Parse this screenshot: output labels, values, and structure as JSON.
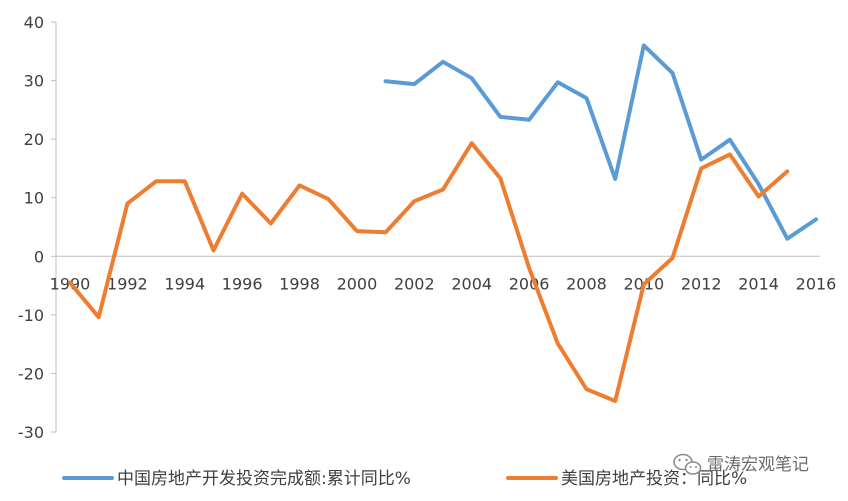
{
  "chart_data": {
    "type": "line",
    "x": [
      1990,
      1991,
      1992,
      1993,
      1994,
      1995,
      1996,
      1997,
      1998,
      1999,
      2000,
      2001,
      2002,
      2003,
      2004,
      2005,
      2006,
      2007,
      2008,
      2009,
      2010,
      2011,
      2012,
      2013,
      2014,
      2015,
      2016
    ],
    "x_tick_labels": [
      "1990",
      "1992",
      "1994",
      "1996",
      "1998",
      "2000",
      "2002",
      "2004",
      "2006",
      "2008",
      "2010",
      "2012",
      "2014",
      "2016"
    ],
    "y_tick_labels": [
      "40",
      "30",
      "20",
      "10",
      "0",
      "-10",
      "-20",
      "-30"
    ],
    "ylim": [
      -30,
      40
    ],
    "xlim": [
      1990,
      2016
    ],
    "legend_position": "bottom",
    "grid": false,
    "series": [
      {
        "name": "中国房地产开发投资完成额:累计同比%",
        "color": "#5b9bd5",
        "x": [
          2001,
          2002,
          2003,
          2004,
          2005,
          2006,
          2007,
          2008,
          2009,
          2010,
          2011,
          2012,
          2013,
          2014,
          2015,
          2016
        ],
        "values": [
          29.9,
          29.4,
          33.2,
          30.4,
          23.8,
          23.3,
          29.7,
          27.0,
          13.2,
          36.0,
          31.3,
          16.5,
          19.9,
          12.3,
          3.0,
          6.3
        ]
      },
      {
        "name": "美国房地产投资：同比%",
        "color": "#ed7d31",
        "x": [
          1990,
          1991,
          1992,
          1993,
          1994,
          1995,
          1996,
          1997,
          1998,
          1999,
          2000,
          2001,
          2002,
          2003,
          2004,
          2005,
          2006,
          2007,
          2008,
          2009,
          2010,
          2011,
          2012,
          2013,
          2014,
          2015
        ],
        "values": [
          -4.5,
          -10.4,
          9.0,
          12.8,
          12.8,
          1.0,
          10.7,
          5.6,
          12.1,
          9.8,
          4.3,
          4.1,
          9.4,
          11.4,
          19.3,
          13.3,
          -2.0,
          -14.9,
          -22.7,
          -24.7,
          -4.8,
          -0.3,
          15.0,
          17.4,
          10.2,
          14.5
        ]
      }
    ]
  },
  "watermark": {
    "text": "雷涛宏观笔记",
    "icon": "wechat-icon"
  }
}
